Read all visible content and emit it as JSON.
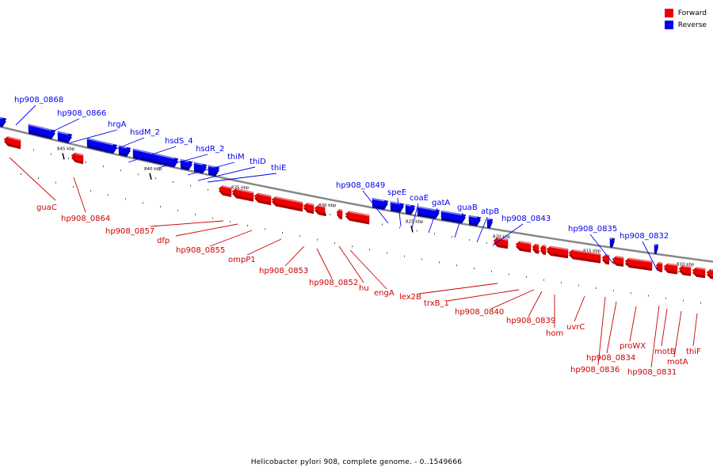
{
  "legend": {
    "forward_label": "Forward",
    "reverse_label": "Reverse",
    "forward_color": "#ee0000",
    "reverse_color": "#0000ee"
  },
  "caption": "Helicobacter pylori 908, complete genome. - 0..1549666",
  "backbone_color": "#888888",
  "ticks": [
    "845 kbp",
    "840 kbp",
    "835 kbp",
    "830 kbp",
    "825 kbp",
    "820 kbp",
    "815 kbp",
    "810 kbp"
  ],
  "reverse_genes": [
    "hp908_0868",
    "hp908_0866",
    "hrgA",
    "hsdM_2",
    "hsdS_4",
    "hsdR_2",
    "thiM",
    "thiD",
    "thiE",
    "hp908_0849",
    "speE",
    "coaE",
    "gatA",
    "guaB",
    "atpB",
    "hp908_0843",
    "hp908_0835",
    "hp908_0832"
  ],
  "forward_genes": [
    "guaC",
    "hp908_0864",
    "hp908_0857",
    "dfp",
    "hp908_0855",
    "ompP1",
    "hp908_0853",
    "hp908_0852",
    "hu",
    "engA",
    "lex2B",
    "trxB_1",
    "hp908_0840",
    "hp908_0839",
    "hom",
    "uvrC",
    "hp908_0834",
    "hp908_0836",
    "proWX",
    "hp908_0831",
    "motB",
    "motA",
    "thiF"
  ]
}
